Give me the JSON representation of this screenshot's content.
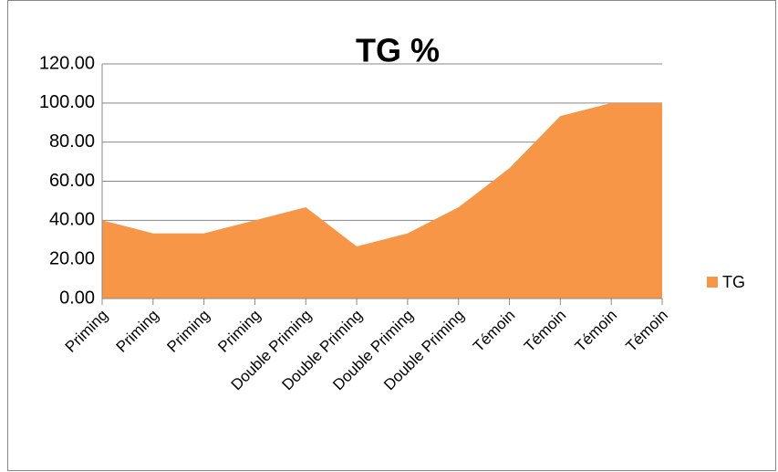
{
  "chart_data": {
    "type": "area",
    "title": "TG %",
    "categories": [
      "Priming",
      "Priming",
      "Priming",
      "Priming",
      "Double Priming",
      "Double Priming",
      "Double Priming",
      "Double Priming",
      "Témoin",
      "Témoin",
      "Témoin",
      "Témoin"
    ],
    "series": [
      {
        "name": "TG",
        "color": "#f79646",
        "values": [
          40,
          33.33,
          33.33,
          40,
          46.67,
          26.67,
          33.33,
          46.67,
          66.67,
          93.33,
          100,
          100
        ]
      }
    ],
    "ylim": [
      0,
      120
    ],
    "yticks": [
      {
        "value": 0,
        "label": "0.00"
      },
      {
        "value": 20,
        "label": "20.00"
      },
      {
        "value": 40,
        "label": "40.00"
      },
      {
        "value": 60,
        "label": "60.00"
      },
      {
        "value": 80,
        "label": "80.00"
      },
      {
        "value": 100,
        "label": "100.00"
      },
      {
        "value": 120,
        "label": "120.00"
      }
    ],
    "grid": true,
    "legend": "right"
  }
}
